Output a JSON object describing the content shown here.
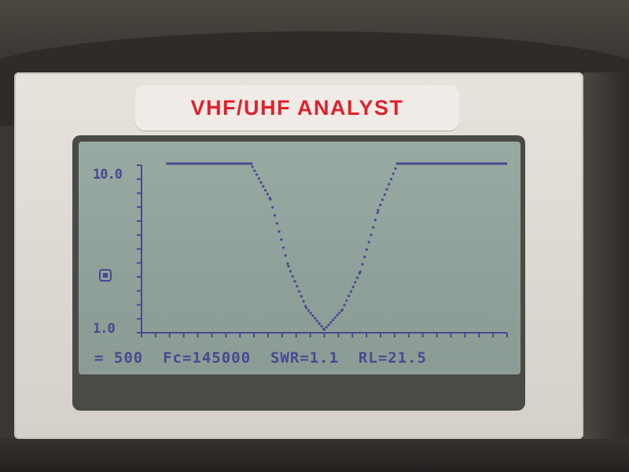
{
  "device": {
    "label": "VHF/UHF ANALYST"
  },
  "display": {
    "y_axis_top": "10.0",
    "y_axis_bottom": "1.0",
    "status_line": {
      "span": "= 500",
      "fc": "Fc=145000",
      "swr": "SWR=1.1",
      "rl": "RL=21.5"
    }
  },
  "chart_data": {
    "type": "line",
    "ylim": [
      1.0,
      10.0
    ],
    "series": [
      {
        "values_note": "SWR curve, min near 1.0 at Fc",
        "x": [
          0.0,
          0.05,
          0.1,
          0.15,
          0.2,
          0.25,
          0.3,
          0.35,
          0.4,
          0.45,
          0.5,
          0.55,
          0.6,
          0.65,
          0.7,
          0.75,
          0.8,
          0.85,
          0.9,
          0.95,
          1.0
        ],
        "y": [
          10,
          10,
          10,
          10,
          10,
          10,
          10,
          8.2,
          4.5,
          2.2,
          1.0,
          2.1,
          4.2,
          7.6,
          10,
          10,
          10,
          10,
          10,
          10,
          10
        ]
      }
    ]
  },
  "colors": {
    "lcd_ink": "#4a4890",
    "label_red": "#e0202c"
  }
}
